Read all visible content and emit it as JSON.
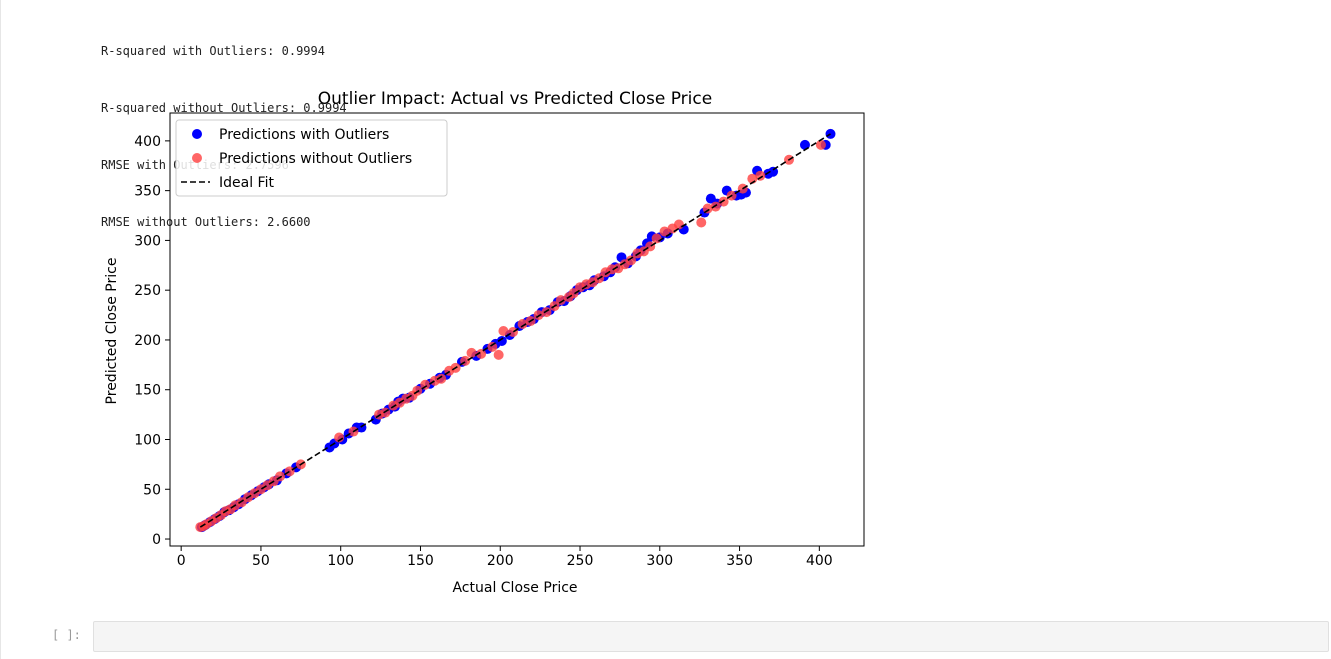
{
  "output": {
    "lines": [
      "R-squared with Outliers: 0.9994",
      "R-squared without Outliers: 0.9994",
      "RMSE with Outliers: 2.7596",
      "RMSE without Outliers: 2.6600"
    ]
  },
  "chart_data": {
    "type": "scatter",
    "title": "Outlier Impact: Actual vs Predicted Close Price",
    "xlabel": "Actual Close Price",
    "ylabel": "Predicted Close Price",
    "xlim": [
      -7,
      428
    ],
    "ylim": [
      -7,
      428
    ],
    "xticks": [
      0,
      50,
      100,
      150,
      200,
      250,
      300,
      350,
      400
    ],
    "yticks": [
      0,
      50,
      100,
      150,
      200,
      250,
      300,
      350,
      400
    ],
    "grid": false,
    "legend_position": "upper-left",
    "series": [
      {
        "name": "Predictions with Outliers",
        "color": "#0000ff",
        "points": [
          [
            13,
            12
          ],
          [
            15,
            14
          ],
          [
            18,
            17
          ],
          [
            21,
            20
          ],
          [
            24,
            23
          ],
          [
            27,
            27
          ],
          [
            30,
            29
          ],
          [
            33,
            32
          ],
          [
            36,
            35
          ],
          [
            40,
            40
          ],
          [
            44,
            44
          ],
          [
            48,
            48
          ],
          [
            52,
            52
          ],
          [
            55,
            55
          ],
          [
            60,
            59
          ],
          [
            66,
            66
          ],
          [
            72,
            72
          ],
          [
            93,
            92
          ],
          [
            96,
            96
          ],
          [
            101,
            100
          ],
          [
            105,
            106
          ],
          [
            110,
            112
          ],
          [
            113,
            112
          ],
          [
            122,
            120
          ],
          [
            126,
            126
          ],
          [
            130,
            130
          ],
          [
            134,
            133
          ],
          [
            136,
            138
          ],
          [
            139,
            141
          ],
          [
            143,
            142
          ],
          [
            150,
            151
          ],
          [
            156,
            156
          ],
          [
            162,
            162
          ],
          [
            166,
            165
          ],
          [
            176,
            178
          ],
          [
            185,
            184
          ],
          [
            192,
            191
          ],
          [
            197,
            196
          ],
          [
            201,
            199
          ],
          [
            206,
            205
          ],
          [
            212,
            214
          ],
          [
            217,
            218
          ],
          [
            221,
            221
          ],
          [
            226,
            228
          ],
          [
            231,
            230
          ],
          [
            236,
            238
          ],
          [
            240,
            239
          ],
          [
            244,
            244
          ],
          [
            248,
            250
          ],
          [
            252,
            253
          ],
          [
            256,
            255
          ],
          [
            259,
            260
          ],
          [
            265,
            264
          ],
          [
            269,
            268
          ],
          [
            272,
            273
          ],
          [
            276,
            283
          ],
          [
            280,
            277
          ],
          [
            285,
            284
          ],
          [
            288,
            290
          ],
          [
            292,
            297
          ],
          [
            295,
            304
          ],
          [
            300,
            303
          ],
          [
            305,
            307
          ],
          [
            315,
            311
          ],
          [
            328,
            328
          ],
          [
            332,
            342
          ],
          [
            336,
            337
          ],
          [
            342,
            350
          ],
          [
            348,
            345
          ],
          [
            351,
            346
          ],
          [
            354,
            348
          ],
          [
            361,
            370
          ],
          [
            368,
            367
          ],
          [
            371,
            369
          ],
          [
            391,
            396
          ],
          [
            404,
            396
          ],
          [
            407,
            407
          ]
        ]
      },
      {
        "name": "Predictions without Outliers",
        "color": "#ff4040",
        "points": [
          [
            12,
            12
          ],
          [
            14,
            13
          ],
          [
            16,
            15
          ],
          [
            19,
            18
          ],
          [
            22,
            21
          ],
          [
            25,
            24
          ],
          [
            28,
            28
          ],
          [
            31,
            30
          ],
          [
            34,
            34
          ],
          [
            38,
            37
          ],
          [
            42,
            42
          ],
          [
            46,
            46
          ],
          [
            50,
            50
          ],
          [
            54,
            54
          ],
          [
            58,
            58
          ],
          [
            62,
            63
          ],
          [
            68,
            68
          ],
          [
            75,
            75
          ],
          [
            99,
            102
          ],
          [
            108,
            108
          ],
          [
            124,
            125
          ],
          [
            128,
            127
          ],
          [
            133,
            134
          ],
          [
            137,
            137
          ],
          [
            141,
            141
          ],
          [
            145,
            144
          ],
          [
            148,
            149
          ],
          [
            153,
            155
          ],
          [
            159,
            159
          ],
          [
            163,
            161
          ],
          [
            168,
            169
          ],
          [
            172,
            172
          ],
          [
            178,
            179
          ],
          [
            182,
            187
          ],
          [
            188,
            186
          ],
          [
            195,
            193
          ],
          [
            199,
            185
          ],
          [
            202,
            209
          ],
          [
            208,
            208
          ],
          [
            214,
            216
          ],
          [
            219,
            219
          ],
          [
            224,
            225
          ],
          [
            229,
            228
          ],
          [
            234,
            234
          ],
          [
            238,
            240
          ],
          [
            243,
            243
          ],
          [
            246,
            247
          ],
          [
            250,
            253
          ],
          [
            254,
            256
          ],
          [
            258,
            258
          ],
          [
            262,
            262
          ],
          [
            266,
            268
          ],
          [
            270,
            271
          ],
          [
            274,
            272
          ],
          [
            278,
            276
          ],
          [
            282,
            280
          ],
          [
            286,
            287
          ],
          [
            290,
            289
          ],
          [
            294,
            294
          ],
          [
            298,
            302
          ],
          [
            303,
            309
          ],
          [
            308,
            312
          ],
          [
            312,
            316
          ],
          [
            326,
            318
          ],
          [
            330,
            332
          ],
          [
            335,
            334
          ],
          [
            340,
            339
          ],
          [
            345,
            345
          ],
          [
            352,
            352
          ],
          [
            358,
            362
          ],
          [
            363,
            365
          ],
          [
            381,
            381
          ],
          [
            401,
            396
          ]
        ]
      },
      {
        "name": "Ideal Fit",
        "type": "line",
        "style": "dashed",
        "color": "#000000",
        "points": [
          [
            12,
            12
          ],
          [
            407,
            407
          ]
        ]
      }
    ]
  }
}
